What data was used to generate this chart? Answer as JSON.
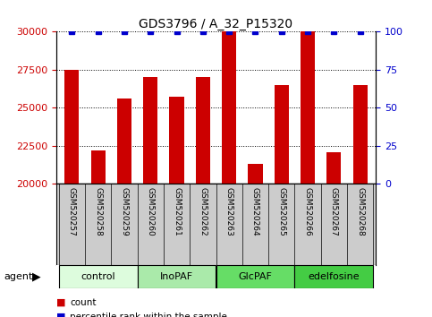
{
  "title": "GDS3796 / A_32_P15320",
  "categories": [
    "GSM520257",
    "GSM520258",
    "GSM520259",
    "GSM520260",
    "GSM520261",
    "GSM520262",
    "GSM520263",
    "GSM520264",
    "GSM520265",
    "GSM520266",
    "GSM520267",
    "GSM520268"
  ],
  "bar_values": [
    27500,
    22200,
    25600,
    27000,
    25700,
    27000,
    30000,
    21300,
    26500,
    30000,
    22100,
    26500
  ],
  "percentile_values": [
    100,
    100,
    100,
    100,
    100,
    100,
    100,
    100,
    100,
    100,
    100,
    100
  ],
  "bar_color": "#cc0000",
  "percentile_color": "#0000cc",
  "groups": [
    {
      "label": "control",
      "start": 0,
      "end": 3,
      "color": "#ddfcdd"
    },
    {
      "label": "InoPAF",
      "start": 3,
      "end": 6,
      "color": "#aaeaaa"
    },
    {
      "label": "GlcPAF",
      "start": 6,
      "end": 9,
      "color": "#66dd66"
    },
    {
      "label": "edelfosine",
      "start": 9,
      "end": 12,
      "color": "#44cc44"
    }
  ],
  "ylim_left": [
    20000,
    30000
  ],
  "ylim_right": [
    0,
    100
  ],
  "yticks_left": [
    20000,
    22500,
    25000,
    27500,
    30000
  ],
  "yticks_right": [
    0,
    25,
    50,
    75,
    100
  ],
  "ylabel_left_color": "#cc0000",
  "ylabel_right_color": "#0000cc",
  "legend_count_color": "#cc0000",
  "legend_percentile_color": "#0000cc",
  "agent_label": "agent",
  "background_color": "#ffffff",
  "tick_area_color": "#cccccc",
  "figsize": [
    4.83,
    3.54
  ],
  "dpi": 100
}
